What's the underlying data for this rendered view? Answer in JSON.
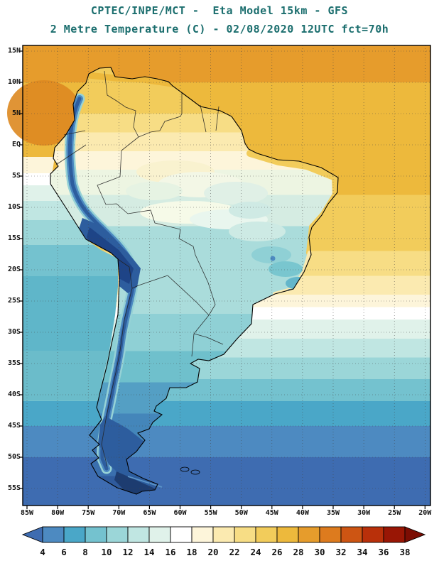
{
  "title": {
    "line1": "CPTEC/INPE/MCT -  Eta Model 15km - GFS",
    "line2": "2 Metre Temperature (C) - 02/08/2020 12UTC fct=70h",
    "color": "#1b6e6e"
  },
  "map": {
    "lat_ticks": [
      "15N",
      "10N",
      "5N",
      "EQ",
      "5S",
      "10S",
      "15S",
      "20S",
      "25S",
      "30S",
      "35S",
      "40S",
      "45S",
      "50S",
      "55S"
    ],
    "lon_ticks": [
      "85W",
      "80W",
      "75W",
      "70W",
      "65W",
      "60W",
      "55W",
      "50W",
      "45W",
      "40W",
      "35W",
      "30W",
      "25W",
      "20W"
    ]
  },
  "colorbar": {
    "tick_labels": [
      "4",
      "6",
      "8",
      "10",
      "12",
      "14",
      "16",
      "18",
      "20",
      "22",
      "24",
      "26",
      "28",
      "30",
      "32",
      "34",
      "36",
      "38"
    ],
    "colors": [
      "#3e6cb1",
      "#4d8ac1",
      "#4aa7c8",
      "#74c2cf",
      "#9bd6d8",
      "#c0e6e2",
      "#e0f2ea",
      "#ffffff",
      "#fdf5da",
      "#fbeab0",
      "#f7dd85",
      "#f2cc5b",
      "#edb93c",
      "#e69c2c",
      "#dd7b1e",
      "#cd5513",
      "#b9300a",
      "#991605",
      "#7c0d03"
    ]
  },
  "chart_data": {
    "type": "heatmap",
    "title": "CPTEC/INPE/MCT -  Eta Model 15km - GFS",
    "subtitle": "2 Metre Temperature (C) - 02/08/2020 12UTC fct=70h",
    "variable": "2 Metre Temperature",
    "units": "C",
    "model": "Eta Model 15km",
    "boundary_conditions": "GFS",
    "init_time": "02/08/2020 12UTC",
    "forecast": "fct=70h",
    "x_axis": {
      "label": "longitude",
      "ticks": [
        "85W",
        "80W",
        "75W",
        "70W",
        "65W",
        "60W",
        "55W",
        "50W",
        "45W",
        "40W",
        "35W",
        "30W",
        "25W",
        "20W"
      ]
    },
    "y_axis": {
      "label": "latitude",
      "ticks": [
        "15N",
        "10N",
        "5N",
        "EQ",
        "5S",
        "10S",
        "15S",
        "20S",
        "25S",
        "30S",
        "35S",
        "40S",
        "45S",
        "50S",
        "55S"
      ]
    },
    "levels_c": [
      4,
      6,
      8,
      10,
      12,
      14,
      16,
      18,
      20,
      22,
      24,
      26,
      28,
      30,
      32,
      34,
      36,
      38
    ],
    "palette": [
      "#3e6cb1",
      "#4d8ac1",
      "#4aa7c8",
      "#74c2cf",
      "#9bd6d8",
      "#c0e6e2",
      "#e0f2ea",
      "#ffffff",
      "#fdf5da",
      "#fbeab0",
      "#f7dd85",
      "#f2cc5b",
      "#edb93c",
      "#e69c2c",
      "#dd7b1e",
      "#cd5513",
      "#b9300a",
      "#991605",
      "#7c0d03"
    ],
    "legend_position": "bottom",
    "grid": "dotted",
    "region": "South America"
  }
}
